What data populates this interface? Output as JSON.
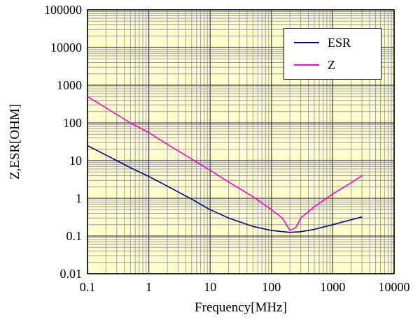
{
  "chart_data": {
    "type": "line",
    "title": "",
    "xlabel": "Frequency[MHz]",
    "ylabel": "Z,ESR[OHM]",
    "x_scale": "log",
    "y_scale": "log",
    "xlim": [
      0.1,
      10000
    ],
    "ylim": [
      0.01,
      100000
    ],
    "x_ticks": [
      "0.1",
      "1",
      "10",
      "100",
      "1000",
      "10000"
    ],
    "y_ticks": [
      "100000",
      "10000",
      "1000",
      "100",
      "10",
      "1",
      "0.1",
      "0.01"
    ],
    "grid": true,
    "legend_position": "top-right",
    "plot_bg": "#ffffcc",
    "grid_minor_color": "#9b9bb0",
    "grid_major_color": "#404040",
    "axis_color": "#000000",
    "series": [
      {
        "name": "ESR",
        "color": "#000080",
        "points": [
          [
            0.1,
            25
          ],
          [
            0.2,
            14
          ],
          [
            0.5,
            6.5
          ],
          [
            1,
            3.8
          ],
          [
            2,
            2.1
          ],
          [
            5,
            0.95
          ],
          [
            10,
            0.5
          ],
          [
            20,
            0.3
          ],
          [
            50,
            0.18
          ],
          [
            100,
            0.14
          ],
          [
            200,
            0.125
          ],
          [
            300,
            0.13
          ],
          [
            500,
            0.15
          ],
          [
            1000,
            0.2
          ],
          [
            2000,
            0.27
          ],
          [
            3000,
            0.32
          ]
        ]
      },
      {
        "name": "Z",
        "color": "#ff00cc",
        "points": [
          [
            0.1,
            500
          ],
          [
            0.2,
            250
          ],
          [
            0.5,
            100
          ],
          [
            1,
            55
          ],
          [
            2,
            27
          ],
          [
            5,
            11
          ],
          [
            10,
            5.5
          ],
          [
            20,
            2.7
          ],
          [
            50,
            1.1
          ],
          [
            100,
            0.5
          ],
          [
            150,
            0.3
          ],
          [
            200,
            0.14
          ],
          [
            250,
            0.17
          ],
          [
            300,
            0.3
          ],
          [
            500,
            0.6
          ],
          [
            1000,
            1.3
          ],
          [
            2000,
            2.6
          ],
          [
            3000,
            4
          ]
        ]
      }
    ]
  }
}
